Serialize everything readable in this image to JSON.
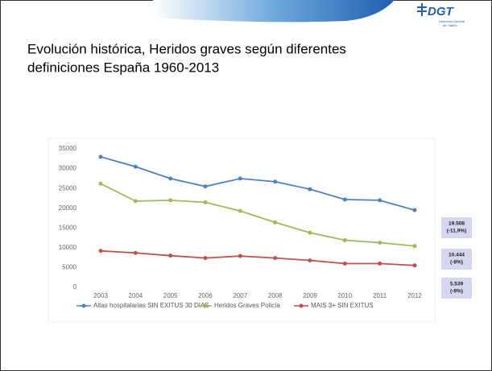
{
  "logo": {
    "name": "DGT",
    "subtitle": [
      "Dirección General",
      "de Tráfico"
    ]
  },
  "chart_data": {
    "type": "line",
    "title": [
      "Evolución histórica, Heridos graves según diferentes",
      "definiciones España 1960-2013"
    ],
    "categories": [
      "2003",
      "2004",
      "2005",
      "2006",
      "2007",
      "2008",
      "2009",
      "2010",
      "2011",
      "2012"
    ],
    "series": [
      {
        "name": "Altas hospitalarias SIN EXITUS 30 DIAS",
        "color": "#4f81bd",
        "values": [
          33000,
          30500,
          27500,
          25500,
          27500,
          26700,
          24800,
          22200,
          22000,
          19508
        ]
      },
      {
        "name": "Heridos Graves Policía",
        "color": "#9bbb59",
        "values": [
          26200,
          21800,
          22000,
          21500,
          19300,
          16400,
          13800,
          11900,
          11300,
          10444
        ]
      },
      {
        "name": "MAIS 3+ SIN EXITUS",
        "color": "#c0504d",
        "values": [
          9200,
          8700,
          8000,
          7400,
          7900,
          7400,
          6800,
          6000,
          6000,
          5539
        ]
      }
    ],
    "ylim": [
      0,
      35000
    ],
    "yticks": [
      0,
      5000,
      10000,
      15000,
      20000,
      25000,
      30000,
      35000
    ],
    "legend": "bottom",
    "annotations": [
      {
        "text": "19.508",
        "change": "(-11,9%)"
      },
      {
        "text": "10.444",
        "change": "(-8%)"
      },
      {
        "text": "5.539",
        "change": "(-8%)"
      }
    ]
  }
}
